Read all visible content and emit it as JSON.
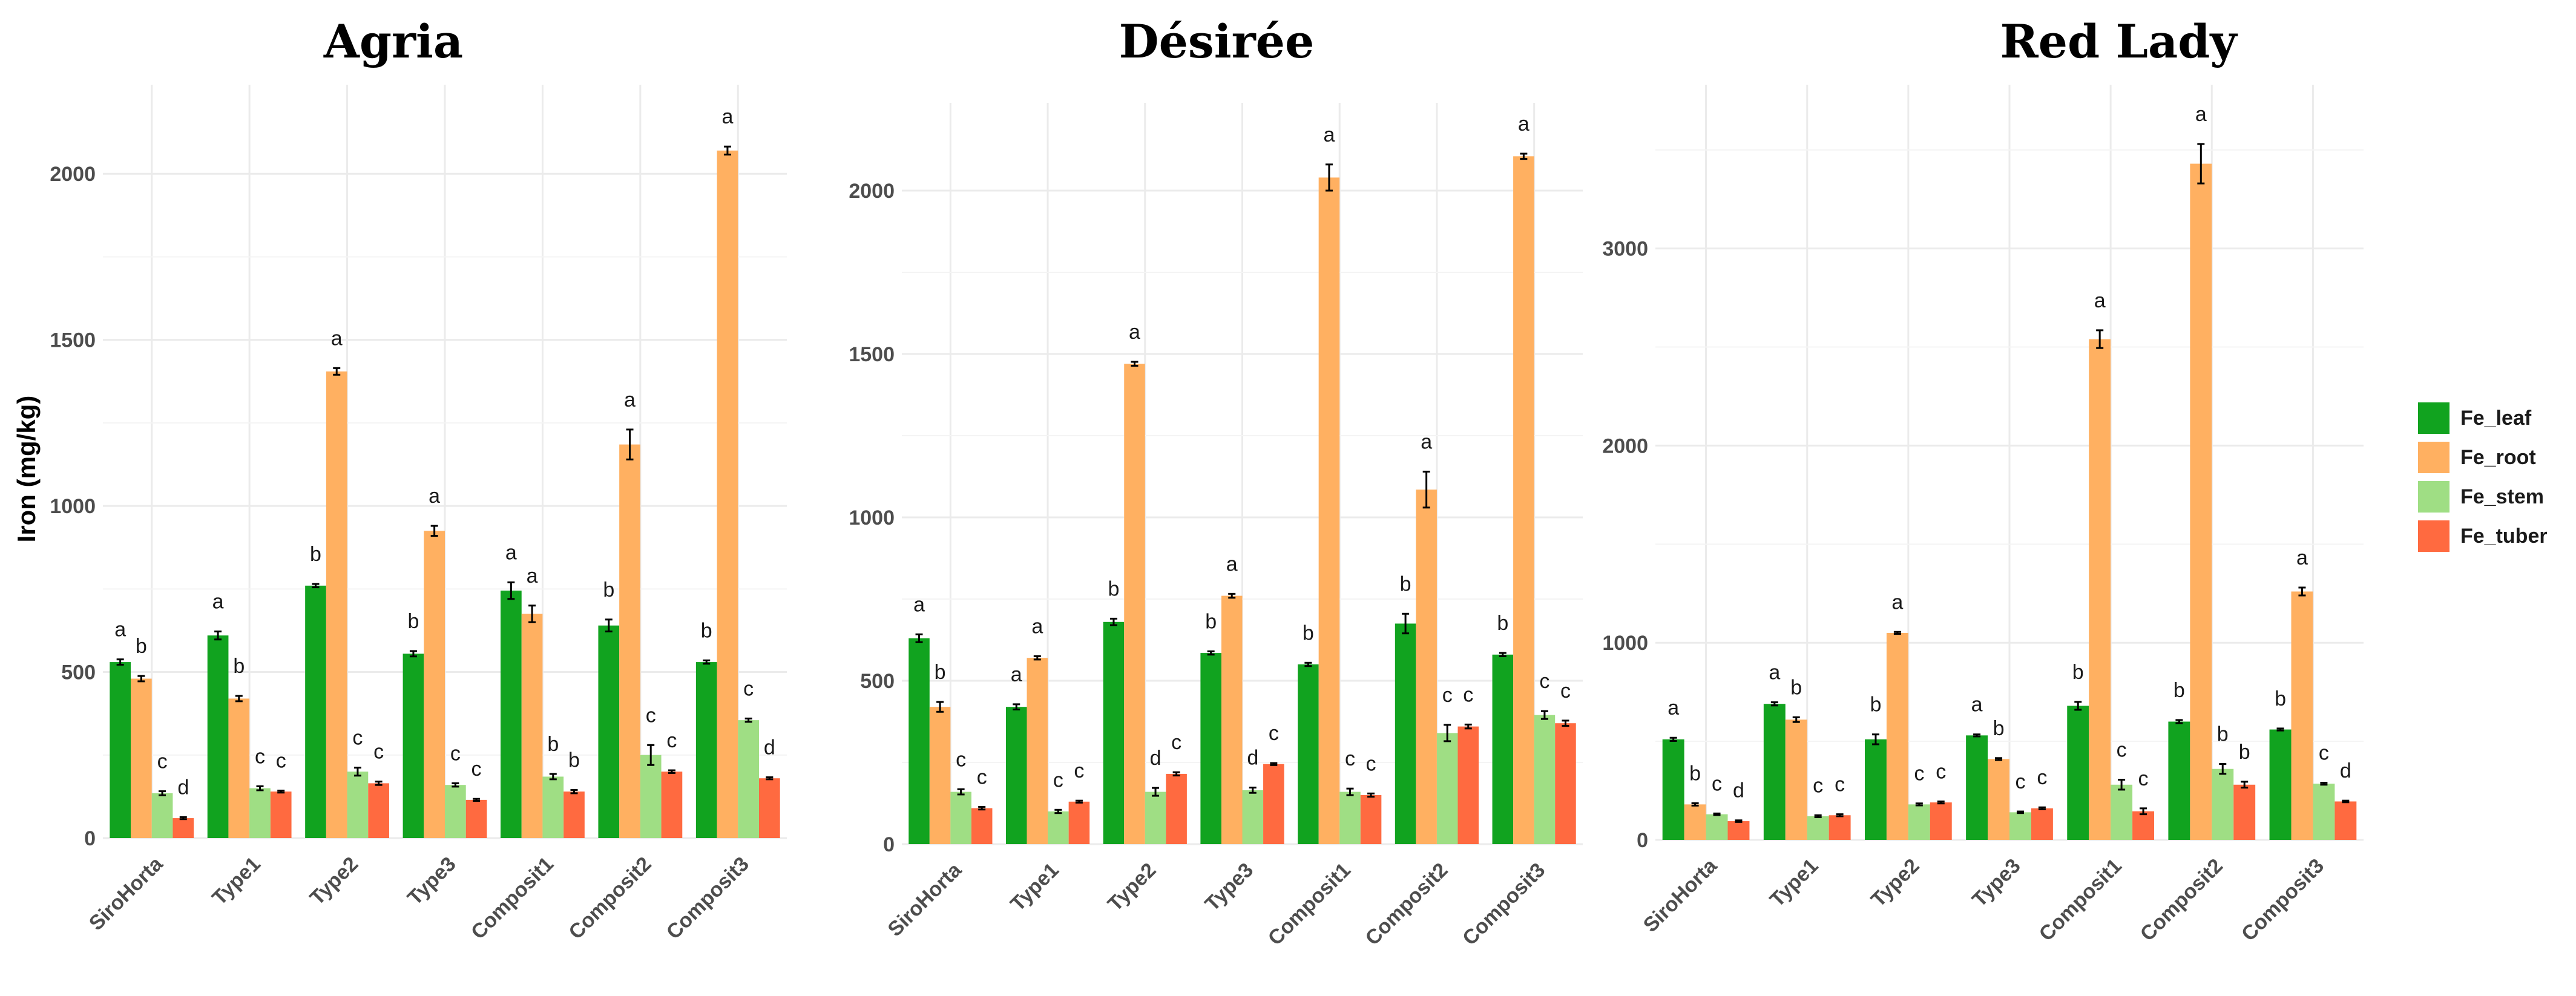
{
  "chart_data": [
    {
      "type": "bar",
      "title": "Agria",
      "ylabel": "Iron (mg/kg)",
      "ylim": [
        0,
        2250
      ],
      "yticks": [
        0,
        500,
        1000,
        1500,
        2000
      ],
      "categories": [
        "SiroHorta",
        "Type1",
        "Type2",
        "Type3",
        "Composit1",
        "Composit2",
        "Composit3"
      ],
      "series": [
        {
          "name": "Fe_leaf",
          "values": [
            530,
            610,
            760,
            555,
            745,
            640,
            530
          ],
          "errors": [
            8,
            12,
            5,
            8,
            25,
            18,
            5
          ],
          "letters": [
            "a",
            "a",
            "b",
            "b",
            "a",
            "b",
            "b"
          ]
        },
        {
          "name": "Fe_root",
          "values": [
            480,
            420,
            1405,
            925,
            675,
            1185,
            2070
          ],
          "errors": [
            8,
            8,
            10,
            15,
            25,
            45,
            12
          ],
          "letters": [
            "b",
            "b",
            "a",
            "a",
            "a",
            "a",
            "a"
          ]
        },
        {
          "name": "Fe_stem",
          "values": [
            135,
            150,
            200,
            160,
            185,
            250,
            355
          ],
          "errors": [
            6,
            6,
            12,
            5,
            8,
            30,
            5
          ],
          "letters": [
            "c",
            "c",
            "c",
            "c",
            "b",
            "c",
            "c"
          ]
        },
        {
          "name": "Fe_tuber",
          "values": [
            60,
            140,
            165,
            115,
            140,
            200,
            180
          ],
          "errors": [
            3,
            3,
            5,
            3,
            5,
            4,
            3
          ],
          "letters": [
            "d",
            "c",
            "c",
            "c",
            "b",
            "c",
            "d"
          ]
        }
      ]
    },
    {
      "type": "bar",
      "title": "Désirée",
      "ylabel": "",
      "ylim": [
        0,
        2250
      ],
      "yticks": [
        0,
        500,
        1000,
        1500,
        2000
      ],
      "categories": [
        "SiroHorta",
        "Type1",
        "Type2",
        "Type3",
        "Composit1",
        "Composit2",
        "Composit3"
      ],
      "series": [
        {
          "name": "Fe_leaf",
          "values": [
            630,
            420,
            680,
            585,
            550,
            675,
            580
          ],
          "errors": [
            12,
            8,
            10,
            5,
            5,
            30,
            5
          ],
          "letters": [
            "a",
            "a",
            "b",
            "b",
            "b",
            "b",
            "b"
          ]
        },
        {
          "name": "Fe_root",
          "values": [
            420,
            570,
            1470,
            760,
            2040,
            1085,
            2105
          ],
          "errors": [
            15,
            5,
            6,
            6,
            40,
            55,
            8
          ],
          "letters": [
            "b",
            "a",
            "a",
            "a",
            "a",
            "a",
            "a"
          ]
        },
        {
          "name": "Fe_stem",
          "values": [
            160,
            100,
            160,
            165,
            160,
            340,
            395
          ],
          "errors": [
            8,
            5,
            12,
            8,
            10,
            25,
            12
          ],
          "letters": [
            "c",
            "c",
            "d",
            "d",
            "c",
            "c",
            "c"
          ]
        },
        {
          "name": "Fe_tuber",
          "values": [
            110,
            130,
            215,
            245,
            150,
            360,
            370
          ],
          "errors": [
            4,
            3,
            5,
            3,
            5,
            6,
            8
          ],
          "letters": [
            "c",
            "c",
            "c",
            "c",
            "c",
            "c",
            "c"
          ]
        }
      ]
    },
    {
      "type": "bar",
      "title": "Red Lady",
      "ylabel": "",
      "ylim": [
        0,
        3800
      ],
      "yticks": [
        0,
        1000,
        2000,
        3000
      ],
      "categories": [
        "SiroHorta",
        "Type1",
        "Type2",
        "Type3",
        "Composit1",
        "Composit2",
        "Composit3"
      ],
      "series": [
        {
          "name": "Fe_leaf",
          "values": [
            510,
            690,
            510,
            530,
            680,
            600,
            560
          ],
          "errors": [
            8,
            8,
            25,
            5,
            20,
            8,
            5
          ],
          "letters": [
            "a",
            "a",
            "b",
            "a",
            "b",
            "b",
            "b"
          ]
        },
        {
          "name": "Fe_root",
          "values": [
            180,
            610,
            1050,
            410,
            2540,
            3430,
            1260
          ],
          "errors": [
            6,
            12,
            5,
            5,
            45,
            100,
            20
          ],
          "letters": [
            "b",
            "b",
            "a",
            "b",
            "a",
            "a",
            "a"
          ]
        },
        {
          "name": "Fe_stem",
          "values": [
            130,
            120,
            180,
            140,
            280,
            360,
            285
          ],
          "errors": [
            4,
            5,
            5,
            4,
            25,
            25,
            5
          ],
          "letters": [
            "c",
            "c",
            "c",
            "c",
            "c",
            "b",
            "c"
          ]
        },
        {
          "name": "Fe_tuber",
          "values": [
            95,
            125,
            190,
            160,
            145,
            280,
            195
          ],
          "errors": [
            4,
            5,
            5,
            5,
            15,
            15,
            4
          ],
          "letters": [
            "d",
            "c",
            "c",
            "c",
            "c",
            "b",
            "d"
          ]
        }
      ]
    }
  ],
  "legend": {
    "items": [
      {
        "name": "Fe_leaf",
        "color": "#11a31f"
      },
      {
        "name": "Fe_root",
        "color": "#ffb061"
      },
      {
        "name": "Fe_stem",
        "color": "#9fde84"
      },
      {
        "name": "Fe_tuber",
        "color": "#ff6a40"
      }
    ]
  }
}
